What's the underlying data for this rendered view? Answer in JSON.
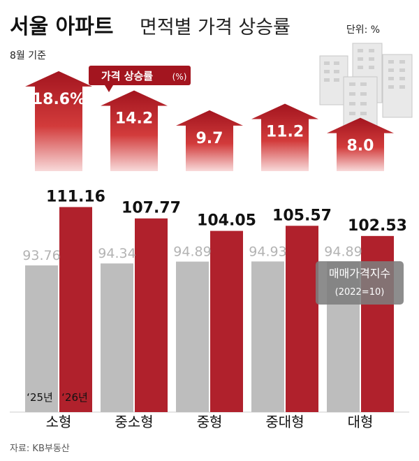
{
  "header": {
    "title": "서울 아파트",
    "subtitle": "면적별 가격 상승률",
    "unit": "단위: %",
    "basis": "8월 기준"
  },
  "legend": {
    "growth_label": "가격 상승률",
    "growth_unit": "(%)",
    "index_label": "매매가격지수",
    "index_base": "(2022=10)"
  },
  "year_labels": [
    "‘25년",
    "‘26년"
  ],
  "source": "자료: KB부동산",
  "colors": {
    "accent_red": "#b0212c",
    "bar_gray": "#bdbdbd",
    "arrow_top": "#a3151f",
    "arrow_bottom": "#f6cfcf"
  },
  "chart_data": {
    "type": "bar",
    "categories": [
      "소형",
      "중소형",
      "중형",
      "중대형",
      "대형"
    ],
    "series": [
      {
        "name": "‘25년",
        "values": [
          93.76,
          94.34,
          94.89,
          94.93,
          94.89
        ]
      },
      {
        "name": "‘26년",
        "values": [
          111.16,
          107.77,
          104.05,
          105.57,
          102.53
        ]
      }
    ],
    "growth": {
      "values": [
        18.6,
        14.2,
        9.7,
        11.2,
        8.0
      ],
      "labels": [
        "18.6%",
        "14.2",
        "9.7",
        "11.2",
        "8.0"
      ]
    },
    "ylabel": "",
    "xlabel": ""
  }
}
